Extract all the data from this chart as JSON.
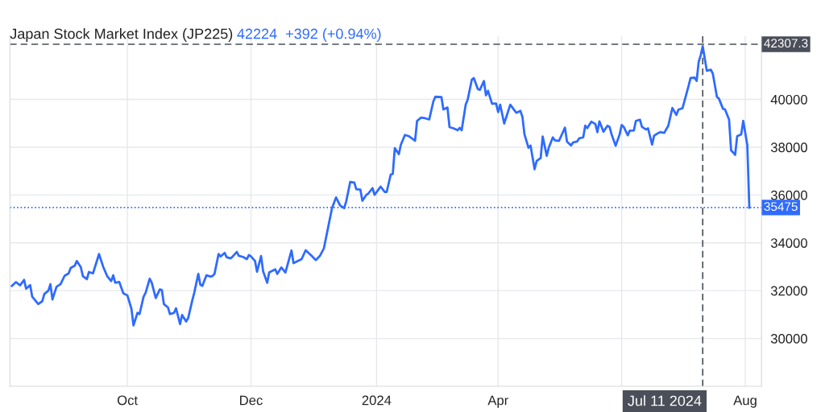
{
  "chart_data": {
    "type": "line",
    "title": "Japan Stock Market Index (JP225)",
    "subtitle": "42224  +392 (+0.94%)",
    "x": [
      "2023-08-05",
      "2023-08-07",
      "2023-08-09",
      "2023-08-11",
      "2023-08-12",
      "2023-08-14",
      "2023-08-15",
      "2023-08-18",
      "2023-08-20",
      "2023-08-21",
      "2023-08-23",
      "2023-08-24",
      "2023-08-25",
      "2023-08-27",
      "2023-08-29",
      "2023-08-31",
      "2023-09-02",
      "2023-09-03",
      "2023-09-05",
      "2023-09-06",
      "2023-09-08",
      "2023-09-09",
      "2023-09-11",
      "2023-09-12",
      "2023-09-14",
      "2023-09-17",
      "2023-09-19",
      "2023-09-21",
      "2023-09-23",
      "2023-09-24",
      "2023-09-25",
      "2023-09-27",
      "2023-09-29",
      "2023-10-01",
      "2023-10-03",
      "2023-10-04",
      "2023-10-06",
      "2023-10-07",
      "2023-10-09",
      "2023-10-10",
      "2023-10-12",
      "2023-10-13",
      "2023-10-15",
      "2023-10-17",
      "2023-10-18",
      "2023-10-19",
      "2023-10-21",
      "2023-10-22",
      "2023-10-24",
      "2023-10-25",
      "2023-10-27",
      "2023-10-28",
      "2023-10-30",
      "2023-10-31",
      "2023-11-02",
      "2023-11-03",
      "2023-11-05",
      "2023-11-06",
      "2023-11-07",
      "2023-11-09",
      "2023-11-11",
      "2023-11-12",
      "2023-11-13",
      "2023-11-15",
      "2023-11-16",
      "2023-11-18",
      "2023-11-19",
      "2023-11-21",
      "2023-11-22",
      "2023-11-24",
      "2023-11-25",
      "2023-11-27",
      "2023-11-29",
      "2023-11-30",
      "2023-12-01",
      "2023-12-03",
      "2023-12-04",
      "2023-12-06",
      "2023-12-07",
      "2023-12-09",
      "2023-12-10",
      "2023-12-13",
      "2023-12-14",
      "2023-12-16",
      "2023-12-18",
      "2023-12-21",
      "2023-12-22",
      "2023-12-26",
      "2023-12-28",
      "2023-12-31",
      "2024-01-02",
      "2024-01-04",
      "2024-01-06",
      "2024-01-08",
      "2024-01-10",
      "2024-01-12",
      "2024-01-14",
      "2024-01-16",
      "2024-01-17",
      "2024-01-19",
      "2024-01-21",
      "2024-01-22",
      "2024-01-24",
      "2024-01-25",
      "2024-01-27",
      "2024-01-28",
      "2024-01-30",
      "2024-01-31",
      "2024-02-03",
      "2024-02-05",
      "2024-02-06",
      "2024-02-08",
      "2024-02-09",
      "2024-02-10",
      "2024-02-12",
      "2024-02-13",
      "2024-02-15",
      "2024-02-17",
      "2024-02-20",
      "2024-02-21",
      "2024-02-23",
      "2024-02-25",
      "2024-02-27",
      "2024-02-29",
      "2024-03-01",
      "2024-03-04",
      "2024-03-05",
      "2024-03-07",
      "2024-03-08",
      "2024-03-10",
      "2024-03-12",
      "2024-03-13",
      "2024-03-14",
      "2024-03-16",
      "2024-03-17",
      "2024-03-19",
      "2024-03-20",
      "2024-03-22",
      "2024-03-23",
      "2024-03-25",
      "2024-03-26",
      "2024-03-27",
      "2024-03-29",
      "2024-03-31",
      "2024-04-01",
      "2024-04-02",
      "2024-04-04",
      "2024-04-07",
      "2024-04-09",
      "2024-04-10",
      "2024-04-12",
      "2024-04-13",
      "2024-04-14",
      "2024-04-16",
      "2024-04-17",
      "2024-04-19",
      "2024-04-20",
      "2024-04-22",
      "2024-04-23",
      "2024-04-25",
      "2024-04-26",
      "2024-04-28",
      "2024-04-29",
      "2024-05-01",
      "2024-05-04",
      "2024-05-05",
      "2024-05-07",
      "2024-05-08",
      "2024-05-10",
      "2024-05-11",
      "2024-05-13",
      "2024-05-14",
      "2024-05-15",
      "2024-05-17",
      "2024-05-19",
      "2024-05-20",
      "2024-05-21",
      "2024-05-23",
      "2024-05-25",
      "2024-05-26",
      "2024-05-27",
      "2024-05-29",
      "2024-05-31",
      "2024-06-01",
      "2024-06-02",
      "2024-06-04",
      "2024-06-05",
      "2024-06-07",
      "2024-06-08",
      "2024-06-10",
      "2024-06-11",
      "2024-06-13",
      "2024-06-14",
      "2024-06-16",
      "2024-06-17",
      "2024-06-19",
      "2024-06-20",
      "2024-06-22",
      "2024-06-24",
      "2024-06-26",
      "2024-06-28",
      "2024-06-29",
      "2024-07-01",
      "2024-07-04",
      "2024-07-05",
      "2024-07-07",
      "2024-07-08",
      "2024-07-09",
      "2024-07-10",
      "2024-07-11",
      "2024-07-13",
      "2024-07-15",
      "2024-07-16",
      "2024-07-18",
      "2024-07-19",
      "2024-07-21",
      "2024-07-22",
      "2024-07-24",
      "2024-07-25",
      "2024-07-27",
      "2024-07-28",
      "2024-07-30",
      "2024-07-31",
      "2024-08-02",
      "2024-08-03"
    ],
    "series": [
      {
        "color": "#2f6bff",
        "values": [
          32200,
          32360,
          32220,
          32450,
          32080,
          32230,
          31750,
          31440,
          31560,
          31860,
          32000,
          32270,
          31630,
          32160,
          32270,
          32620,
          32720,
          32950,
          33040,
          33240,
          32980,
          32610,
          32480,
          32780,
          32720,
          33530,
          33010,
          32610,
          32400,
          32640,
          32330,
          32360,
          31890,
          31800,
          31240,
          30550,
          31070,
          31020,
          31750,
          31910,
          32500,
          32340,
          31690,
          32050,
          32030,
          31440,
          31300,
          31020,
          31070,
          31260,
          30600,
          30980,
          30710,
          30850,
          31580,
          31910,
          32700,
          32250,
          32200,
          32640,
          32590,
          32610,
          32700,
          33530,
          33430,
          33580,
          33400,
          33350,
          33430,
          33620,
          33460,
          33410,
          33320,
          33490,
          33430,
          33240,
          32790,
          33450,
          32810,
          32330,
          32760,
          32890,
          32700,
          32970,
          32760,
          33680,
          33150,
          33320,
          33690,
          33450,
          33280,
          33450,
          33770,
          34610,
          35450,
          35900,
          35560,
          35450,
          35730,
          36550,
          36520,
          36240,
          36230,
          35760,
          36010,
          36070,
          36290,
          36010,
          36350,
          36130,
          36130,
          36860,
          36880,
          37960,
          37710,
          38110,
          38510,
          38460,
          38270,
          39100,
          39240,
          39210,
          39160,
          39910,
          40110,
          40100,
          39580,
          39660,
          38840,
          38790,
          38710,
          38810,
          38710,
          39780,
          40000,
          40820,
          40890,
          40430,
          40400,
          40770,
          40170,
          40360,
          39820,
          39830,
          39470,
          39780,
          38990,
          39780,
          39550,
          39440,
          39520,
          39270,
          38540,
          37980,
          38070,
          37080,
          37420,
          37550,
          38450,
          37640,
          37980,
          38410,
          38290,
          38260,
          38820,
          38230,
          38070,
          38200,
          38240,
          38370,
          38410,
          38900,
          38800,
          39070,
          38970,
          38630,
          39080,
          38650,
          38900,
          38850,
          38540,
          38060,
          38540,
          38930,
          38850,
          38500,
          38690,
          38700,
          39100,
          39150,
          38850,
          38740,
          38790,
          38110,
          38480,
          38590,
          38630,
          38600,
          38900,
          39640,
          39350,
          39570,
          39630,
          40560,
          40900,
          40910,
          40770,
          41570,
          41850,
          42224,
          41200,
          41240,
          41070,
          40110,
          40030,
          39610,
          39580,
          39160,
          37870,
          37680,
          38460,
          38540,
          39100,
          38090,
          35475
        ]
      }
    ],
    "xlim": [
      "2023-08-04",
      "2024-08-09"
    ],
    "ylim": [
      28000,
      42650
    ],
    "xticks": [
      {
        "value": "2023-10-01",
        "label": "Oct"
      },
      {
        "value": "2023-12-01",
        "label": "Dec"
      },
      {
        "value": "2024-02-01",
        "label": "2024"
      },
      {
        "value": "2024-04-01",
        "label": "Apr"
      },
      {
        "value": "2024-06-01",
        "label": null
      },
      {
        "value": "2024-08-01",
        "label": "Aug"
      }
    ],
    "yticks": [
      30000,
      32000,
      34000,
      36000,
      38000,
      40000
    ],
    "ref_lines": [
      {
        "axis": "x",
        "value": "2024-07-11",
        "label": "Jul 11 2024",
        "color": "#4a4f5a",
        "line_style": "dashed"
      },
      {
        "axis": "y",
        "value": 42307.3,
        "label": "42307.3",
        "color": "#4a4f5a",
        "line_style": "dashed"
      },
      {
        "axis": "y",
        "value": 35475,
        "label": "35475",
        "color": "#2f6bff",
        "line_style": "dotted"
      }
    ],
    "grid": true,
    "legend": false,
    "marker": "none",
    "line_style": "solid"
  }
}
